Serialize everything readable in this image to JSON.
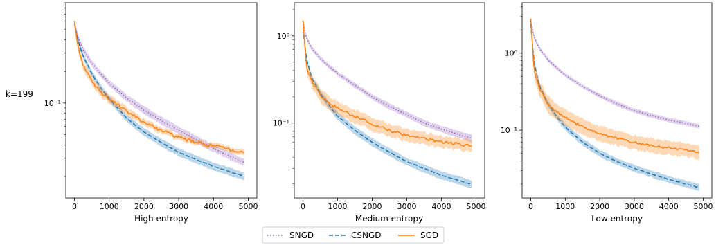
{
  "row_label": "k=199",
  "legend": {
    "entries": [
      {
        "label": "SNGD",
        "style": "dotted",
        "color": "#9467bd"
      },
      {
        "label": "CSNGD",
        "style": "dashed",
        "color": "#1f77b4"
      },
      {
        "label": "SGD",
        "style": "solid",
        "color": "#ff7f0e"
      }
    ]
  },
  "chart_data": [
    {
      "type": "line",
      "xlabel": "High entropy",
      "ylabel": "",
      "yscale": "log",
      "xlim": [
        -250,
        5250
      ],
      "ylim": [
        0.0125,
        0.9
      ],
      "xticks": [
        0,
        1000,
        2000,
        3000,
        4000,
        5000
      ],
      "xtick_labels": [
        "0",
        "1000",
        "2000",
        "3000",
        "4000",
        "5000"
      ],
      "yticks": [
        0.1
      ],
      "ytick_labels": [
        "10⁻¹"
      ],
      "x": [
        0,
        100,
        250,
        500,
        750,
        1000,
        1500,
        2000,
        2500,
        3000,
        3500,
        4000,
        4500,
        4900
      ],
      "series": [
        {
          "name": "SNGD",
          "style": "dotted",
          "color": "#9467bd",
          "values": [
            0.57,
            0.42,
            0.32,
            0.24,
            0.19,
            0.155,
            0.112,
            0.086,
            0.068,
            0.055,
            0.045,
            0.037,
            0.031,
            0.027
          ],
          "band": [
            0.07,
            0.07,
            0.07,
            0.07,
            0.07,
            0.07,
            0.08,
            0.09,
            0.09,
            0.09,
            0.08,
            0.08,
            0.08,
            0.08
          ]
        },
        {
          "name": "CSNGD",
          "style": "dashed",
          "color": "#1f77b4",
          "values": [
            0.57,
            0.39,
            0.28,
            0.19,
            0.14,
            0.11,
            0.072,
            0.053,
            0.042,
            0.034,
            0.029,
            0.025,
            0.022,
            0.02
          ],
          "band": [
            0.06,
            0.06,
            0.06,
            0.07,
            0.07,
            0.07,
            0.08,
            0.09,
            0.09,
            0.09,
            0.09,
            0.09,
            0.09,
            0.09
          ]
        },
        {
          "name": "SGD",
          "style": "solid",
          "color": "#ff7f0e",
          "values": [
            0.6,
            0.34,
            0.23,
            0.16,
            0.128,
            0.11,
            0.083,
            0.066,
            0.055,
            0.047,
            0.042,
            0.039,
            0.036,
            0.033
          ],
          "band": [
            0.1,
            0.1,
            0.1,
            0.1,
            0.1,
            0.1,
            0.09,
            0.08,
            0.07,
            0.07,
            0.06,
            0.06,
            0.06,
            0.06
          ]
        }
      ]
    },
    {
      "type": "line",
      "xlabel": "Medium entropy",
      "ylabel": "",
      "yscale": "log",
      "xlim": [
        -250,
        5250
      ],
      "ylim": [
        0.0138,
        2.4
      ],
      "xticks": [
        0,
        1000,
        2000,
        3000,
        4000,
        5000
      ],
      "xtick_labels": [
        "0",
        "1000",
        "2000",
        "3000",
        "4000",
        "5000"
      ],
      "yticks": [
        1,
        0.1
      ],
      "ytick_labels": [
        "10⁰",
        "10⁻¹"
      ],
      "x": [
        0,
        100,
        250,
        500,
        750,
        1000,
        1500,
        2000,
        2500,
        3000,
        3500,
        4000,
        4500,
        4900
      ],
      "series": [
        {
          "name": "SNGD",
          "style": "dotted",
          "color": "#9467bd",
          "values": [
            1.45,
            0.95,
            0.72,
            0.55,
            0.45,
            0.37,
            0.27,
            0.2,
            0.155,
            0.125,
            0.1,
            0.085,
            0.074,
            0.066
          ],
          "band": [
            0.06,
            0.06,
            0.06,
            0.06,
            0.06,
            0.06,
            0.07,
            0.07,
            0.08,
            0.08,
            0.09,
            0.09,
            0.09,
            0.1
          ]
        },
        {
          "name": "CSNGD",
          "style": "dashed",
          "color": "#1f77b4",
          "values": [
            1.2,
            0.55,
            0.33,
            0.22,
            0.16,
            0.12,
            0.082,
            0.06,
            0.046,
            0.036,
            0.03,
            0.025,
            0.022,
            0.0195
          ],
          "band": [
            0.06,
            0.07,
            0.08,
            0.09,
            0.1,
            0.1,
            0.11,
            0.11,
            0.11,
            0.11,
            0.11,
            0.11,
            0.11,
            0.11
          ]
        },
        {
          "name": "SGD",
          "style": "solid",
          "color": "#ff7f0e",
          "values": [
            1.5,
            0.45,
            0.3,
            0.21,
            0.17,
            0.148,
            0.118,
            0.098,
            0.082,
            0.072,
            0.066,
            0.061,
            0.057,
            0.054
          ],
          "band": [
            0.12,
            0.15,
            0.17,
            0.19,
            0.19,
            0.19,
            0.19,
            0.19,
            0.18,
            0.18,
            0.17,
            0.16,
            0.16,
            0.16
          ]
        }
      ]
    },
    {
      "type": "line",
      "xlabel": "Low entropy",
      "ylabel": "",
      "yscale": "log",
      "xlim": [
        -250,
        5250
      ],
      "ylim": [
        0.0132,
        4.5
      ],
      "xticks": [
        0,
        1000,
        2000,
        3000,
        4000,
        5000
      ],
      "xtick_labels": [
        "0",
        "1000",
        "2000",
        "3000",
        "4000",
        "5000"
      ],
      "yticks": [
        1,
        0.1
      ],
      "ytick_labels": [
        "10⁰",
        "10⁻¹"
      ],
      "x": [
        0,
        100,
        250,
        500,
        750,
        1000,
        1500,
        2000,
        2500,
        3000,
        3500,
        4000,
        4500,
        4900
      ],
      "series": [
        {
          "name": "SNGD",
          "style": "dotted",
          "color": "#9467bd",
          "values": [
            2.6,
            1.6,
            1.15,
            0.82,
            0.64,
            0.52,
            0.37,
            0.28,
            0.22,
            0.18,
            0.155,
            0.135,
            0.122,
            0.112
          ],
          "band": [
            0.06,
            0.06,
            0.06,
            0.06,
            0.06,
            0.06,
            0.06,
            0.06,
            0.07,
            0.07,
            0.07,
            0.07,
            0.07,
            0.07
          ]
        },
        {
          "name": "CSNGD",
          "style": "dashed",
          "color": "#1f77b4",
          "values": [
            2.4,
            0.75,
            0.38,
            0.22,
            0.15,
            0.11,
            0.07,
            0.05,
            0.039,
            0.032,
            0.027,
            0.023,
            0.02,
            0.018
          ],
          "band": [
            0.07,
            0.08,
            0.09,
            0.1,
            0.1,
            0.1,
            0.11,
            0.11,
            0.11,
            0.11,
            0.11,
            0.11,
            0.11,
            0.11
          ]
        },
        {
          "name": "SGD",
          "style": "solid",
          "color": "#ff7f0e",
          "values": [
            2.8,
            0.6,
            0.35,
            0.22,
            0.17,
            0.145,
            0.11,
            0.09,
            0.078,
            0.069,
            0.063,
            0.059,
            0.055,
            0.052
          ],
          "band": [
            0.15,
            0.22,
            0.26,
            0.28,
            0.28,
            0.28,
            0.27,
            0.26,
            0.25,
            0.24,
            0.24,
            0.23,
            0.23,
            0.22
          ]
        }
      ]
    }
  ]
}
